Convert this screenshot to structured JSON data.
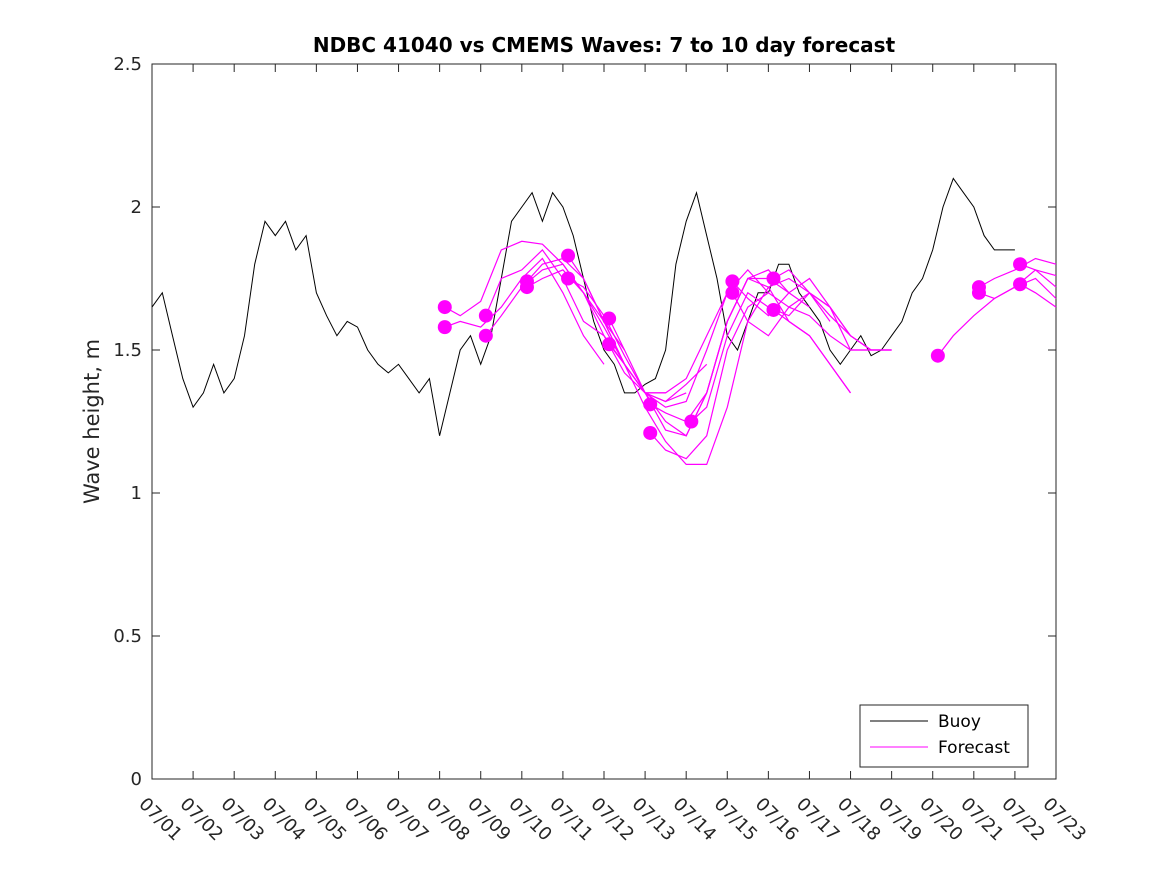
{
  "chart_data": {
    "type": "line",
    "title": "NDBC 41040 vs CMEMS Waves: 7 to 10 day forecast",
    "xlabel": "",
    "ylabel": "Wave height, m",
    "xlim": [
      "07/01",
      "07/23"
    ],
    "ylim": [
      0,
      2.5
    ],
    "yticks": [
      0,
      0.5,
      1,
      1.5,
      2,
      2.5
    ],
    "ytick_labels": [
      "0",
      "0.5",
      "1",
      "1.5",
      "2",
      "2.5"
    ],
    "xtick_labels": [
      "07/01",
      "07/02",
      "07/03",
      "07/04",
      "07/05",
      "07/06",
      "07/07",
      "07/08",
      "07/09",
      "07/10",
      "07/11",
      "07/12",
      "07/13",
      "07/14",
      "07/15",
      "07/16",
      "07/17",
      "07/18",
      "07/19",
      "07/20",
      "07/21",
      "07/22",
      "07/23"
    ],
    "grid": false,
    "legend": {
      "location": "bottom-right",
      "entries": [
        "Buoy",
        "Forecast"
      ]
    },
    "colors": {
      "buoy": "#000000",
      "forecast": "#ff00ff"
    },
    "buoy": {
      "name": "Buoy",
      "x": [
        "07/01 00h",
        "07/01 06h",
        "07/01 12h",
        "07/01 18h",
        "07/02 00h",
        "07/02 06h",
        "07/02 12h",
        "07/02 18h",
        "07/03 00h",
        "07/03 06h",
        "07/03 12h",
        "07/03 18h",
        "07/04 00h",
        "07/04 06h",
        "07/04 12h",
        "07/04 18h",
        "07/05 00h",
        "07/05 06h",
        "07/05 12h",
        "07/05 18h",
        "07/06 00h",
        "07/06 06h",
        "07/06 12h",
        "07/06 18h",
        "07/07 00h",
        "07/07 06h",
        "07/07 12h",
        "07/07 18h",
        "07/08 00h",
        "07/08 06h",
        "07/08 12h",
        "07/08 18h",
        "07/09 00h",
        "07/09 06h",
        "07/09 12h",
        "07/09 18h",
        "07/10 00h",
        "07/10 06h",
        "07/10 12h",
        "07/10 18h",
        "07/11 00h",
        "07/11 06h",
        "07/11 12h",
        "07/11 18h",
        "07/12 00h",
        "07/12 06h",
        "07/12 12h",
        "07/12 18h",
        "07/13 00h",
        "07/13 06h",
        "07/13 12h",
        "07/13 18h",
        "07/14 00h",
        "07/14 06h",
        "07/14 12h",
        "07/14 18h",
        "07/15 00h",
        "07/15 06h",
        "07/15 12h",
        "07/15 18h",
        "07/16 00h",
        "07/16 06h",
        "07/16 12h",
        "07/16 18h",
        "07/17 00h",
        "07/17 06h",
        "07/17 12h",
        "07/17 18h",
        "07/18 00h",
        "07/18 06h",
        "07/18 12h",
        "07/18 18h",
        "07/19 00h",
        "07/19 06h",
        "07/19 12h",
        "07/19 18h",
        "07/20 00h",
        "07/20 06h",
        "07/20 12h",
        "07/20 18h",
        "07/21 00h",
        "07/21 06h",
        "07/21 12h",
        "07/21 18h",
        "07/22 00h"
      ],
      "y": [
        1.65,
        1.7,
        1.55,
        1.4,
        1.3,
        1.35,
        1.45,
        1.35,
        1.4,
        1.55,
        1.8,
        1.95,
        1.9,
        1.95,
        1.85,
        1.9,
        1.7,
        1.62,
        1.55,
        1.6,
        1.58,
        1.5,
        1.45,
        1.42,
        1.45,
        1.4,
        1.35,
        1.4,
        1.2,
        1.35,
        1.5,
        1.55,
        1.45,
        1.55,
        1.75,
        1.95,
        2.0,
        2.05,
        1.95,
        2.05,
        2.0,
        1.9,
        1.75,
        1.6,
        1.5,
        1.45,
        1.35,
        1.35,
        1.38,
        1.4,
        1.5,
        1.8,
        1.95,
        2.05,
        1.9,
        1.75,
        1.55,
        1.5,
        1.6,
        1.7,
        1.7,
        1.8,
        1.8,
        1.7,
        1.65,
        1.6,
        1.5,
        1.45,
        1.5,
        1.55,
        1.48,
        1.5,
        1.55,
        1.6,
        1.7,
        1.75,
        1.85,
        2.0,
        2.1,
        2.05,
        2.0,
        1.9,
        1.85,
        1.85,
        1.85
      ]
    },
    "forecast_series": [
      {
        "x": [
          "07/08 03h",
          "07/08 12h",
          "07/09 00h",
          "07/09 12h",
          "07/10 00h",
          "07/10 12h",
          "07/11 00h",
          "07/11 12h",
          "07/12 00h"
        ],
        "y": [
          1.58,
          1.6,
          1.58,
          1.65,
          1.75,
          1.82,
          1.7,
          1.55,
          1.45
        ]
      },
      {
        "x": [
          "07/08 03h",
          "07/08 12h",
          "07/09 00h",
          "07/09 12h",
          "07/10 00h",
          "07/10 12h",
          "07/11 00h",
          "07/11 12h",
          "07/12 00h",
          "07/12 12h"
        ],
        "y": [
          1.65,
          1.62,
          1.67,
          1.85,
          1.88,
          1.87,
          1.8,
          1.7,
          1.6,
          1.5
        ]
      },
      {
        "x": [
          "07/09 03h",
          "07/09 12h",
          "07/10 00h",
          "07/10 12h",
          "07/11 00h",
          "07/11 12h",
          "07/12 00h",
          "07/12 12h",
          "07/13 00h",
          "07/13 12h"
        ],
        "y": [
          1.62,
          1.75,
          1.78,
          1.85,
          1.75,
          1.6,
          1.55,
          1.45,
          1.35,
          1.35
        ]
      },
      {
        "x": [
          "07/09 03h",
          "07/09 12h",
          "07/10 00h",
          "07/10 12h",
          "07/11 00h",
          "07/11 12h",
          "07/12 00h",
          "07/12 12h",
          "07/13 00h",
          "07/13 12h",
          "07/14 00h"
        ],
        "y": [
          1.55,
          1.62,
          1.72,
          1.78,
          1.8,
          1.7,
          1.58,
          1.45,
          1.35,
          1.32,
          1.35
        ]
      },
      {
        "x": [
          "07/10 03h",
          "07/10 12h",
          "07/11 00h",
          "07/11 12h",
          "07/12 00h",
          "07/12 12h",
          "07/13 00h",
          "07/13 12h",
          "07/14 00h",
          "07/14 12h"
        ],
        "y": [
          1.74,
          1.8,
          1.82,
          1.75,
          1.6,
          1.45,
          1.35,
          1.32,
          1.38,
          1.45
        ]
      },
      {
        "x": [
          "07/10 03h",
          "07/10 12h",
          "07/11 00h",
          "07/11 12h",
          "07/12 00h",
          "07/12 12h",
          "07/13 00h",
          "07/13 12h",
          "07/14 00h",
          "07/14 12h",
          "07/15 00h"
        ],
        "y": [
          1.72,
          1.75,
          1.78,
          1.7,
          1.55,
          1.42,
          1.35,
          1.35,
          1.4,
          1.55,
          1.7
        ]
      },
      {
        "x": [
          "07/11 03h",
          "07/11 12h",
          "07/12 00h",
          "07/12 12h",
          "07/13 00h",
          "07/13 12h",
          "07/14 00h",
          "07/14 12h",
          "07/15 00h",
          "07/15 12h",
          "07/16 00h"
        ],
        "y": [
          1.83,
          1.75,
          1.6,
          1.45,
          1.35,
          1.3,
          1.32,
          1.5,
          1.7,
          1.78,
          1.7
        ]
      },
      {
        "x": [
          "07/11 03h",
          "07/11 12h",
          "07/12 00h",
          "07/12 12h",
          "07/13 00h",
          "07/13 12h",
          "07/14 00h",
          "07/14 12h",
          "07/15 00h",
          "07/15 12h",
          "07/16 00h",
          "07/16 12h"
        ],
        "y": [
          1.75,
          1.72,
          1.62,
          1.48,
          1.35,
          1.25,
          1.2,
          1.35,
          1.6,
          1.75,
          1.75,
          1.7
        ]
      },
      {
        "x": [
          "07/12 03h",
          "07/12 12h",
          "07/13 00h",
          "07/13 12h",
          "07/14 00h",
          "07/14 12h",
          "07/15 00h",
          "07/15 12h",
          "07/16 00h",
          "07/16 12h",
          "07/17 00h"
        ],
        "y": [
          1.61,
          1.5,
          1.35,
          1.22,
          1.2,
          1.35,
          1.6,
          1.75,
          1.78,
          1.7,
          1.65
        ]
      },
      {
        "x": [
          "07/12 03h",
          "07/12 12h",
          "07/13 00h",
          "07/13 12h",
          "07/14 00h",
          "07/14 12h",
          "07/15 00h",
          "07/15 12h",
          "07/16 00h",
          "07/16 12h",
          "07/17 00h",
          "07/17 12h"
        ],
        "y": [
          1.52,
          1.45,
          1.3,
          1.18,
          1.1,
          1.1,
          1.3,
          1.6,
          1.72,
          1.75,
          1.7,
          1.6
        ]
      },
      {
        "x": [
          "07/13 03h",
          "07/13 12h",
          "07/14 00h",
          "07/14 12h",
          "07/15 00h",
          "07/15 12h",
          "07/16 00h",
          "07/16 12h",
          "07/17 00h",
          "07/17 12h",
          "07/18 00h"
        ],
        "y": [
          1.31,
          1.28,
          1.25,
          1.35,
          1.6,
          1.75,
          1.72,
          1.6,
          1.55,
          1.45,
          1.35
        ]
      },
      {
        "x": [
          "07/13 03h",
          "07/13 12h",
          "07/14 00h",
          "07/14 12h",
          "07/15 00h",
          "07/15 12h",
          "07/16 00h",
          "07/16 12h",
          "07/17 00h",
          "07/17 12h",
          "07/18 00h",
          "07/18 12h"
        ],
        "y": [
          1.21,
          1.15,
          1.12,
          1.2,
          1.5,
          1.65,
          1.7,
          1.65,
          1.62,
          1.55,
          1.5,
          1.5
        ]
      },
      {
        "x": [
          "07/14 03h",
          "07/14 12h",
          "07/15 00h",
          "07/15 12h",
          "07/16 00h",
          "07/16 12h",
          "07/17 00h",
          "07/17 12h",
          "07/18 00h",
          "07/18 12h",
          "07/19 00h"
        ],
        "y": [
          1.25,
          1.3,
          1.55,
          1.7,
          1.65,
          1.62,
          1.7,
          1.65,
          1.55,
          1.5,
          1.5
        ]
      },
      {
        "x": [
          "07/15 03h",
          "07/15 12h",
          "07/16 00h",
          "07/16 12h",
          "07/17 00h",
          "07/17 12h",
          "07/18 00h",
          "07/18 12h"
        ],
        "y": [
          1.74,
          1.68,
          1.62,
          1.7,
          1.75,
          1.65,
          1.5,
          1.5
        ]
      },
      {
        "x": [
          "07/15 03h",
          "07/15 12h",
          "07/16 00h",
          "07/16 12h",
          "07/17 00h",
          "07/17 12h",
          "07/18 00h",
          "07/18 12h",
          "07/19 00h"
        ],
        "y": [
          1.7,
          1.6,
          1.55,
          1.65,
          1.7,
          1.65,
          1.55,
          1.5,
          1.5
        ]
      },
      {
        "x": [
          "07/16 03h",
          "07/16 12h",
          "07/17 00h",
          "07/17 12h",
          "07/18 00h",
          "07/18 12h",
          "07/19 00h"
        ],
        "y": [
          1.75,
          1.78,
          1.7,
          1.62,
          1.55,
          1.5,
          1.5
        ]
      },
      {
        "x": [
          "07/16 03h",
          "07/16 12h",
          "07/17 00h",
          "07/17 12h",
          "07/18 00h"
        ],
        "y": [
          1.64,
          1.6,
          1.55,
          1.45,
          1.35
        ]
      },
      {
        "x": [
          "07/20 03h",
          "07/20 12h",
          "07/21 00h",
          "07/21 12h",
          "07/22 00h",
          "07/22 12h",
          "07/23 00h"
        ],
        "y": [
          1.48,
          1.55,
          1.62,
          1.68,
          1.72,
          1.78,
          1.76
        ]
      },
      {
        "x": [
          "07/21 03h",
          "07/21 12h",
          "07/22 00h",
          "07/22 12h",
          "07/23 00h"
        ],
        "y": [
          1.72,
          1.75,
          1.78,
          1.82,
          1.8
        ]
      },
      {
        "x": [
          "07/21 03h",
          "07/21 12h",
          "07/22 00h",
          "07/22 12h",
          "07/23 00h"
        ],
        "y": [
          1.7,
          1.68,
          1.72,
          1.75,
          1.68
        ]
      },
      {
        "x": [
          "07/22 03h",
          "07/22 12h",
          "07/23 00h"
        ],
        "y": [
          1.8,
          1.78,
          1.72
        ]
      },
      {
        "x": [
          "07/22 03h",
          "07/22 12h",
          "07/23 00h"
        ],
        "y": [
          1.73,
          1.7,
          1.65
        ]
      }
    ]
  }
}
